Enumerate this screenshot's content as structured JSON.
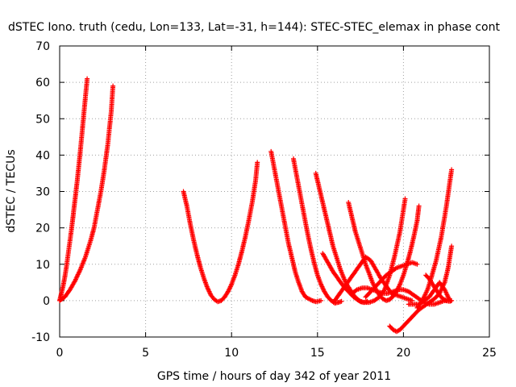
{
  "chart_data": {
    "type": "scatter",
    "title": "dSTEC Iono. truth (cedu, Lon=133, Lat=-31, h=144): STEC-STEC_elemax in phase cont",
    "xlabel": "GPS time / hours of day 342 of year 2011",
    "ylabel": "dSTEC  / TECUs",
    "xlim": [
      0,
      25
    ],
    "ylim": [
      -10,
      70
    ],
    "xticks": [
      0,
      5,
      10,
      15,
      20,
      25
    ],
    "yticks": [
      -10,
      0,
      10,
      20,
      30,
      40,
      50,
      60,
      70
    ],
    "grid": true,
    "marker": "+",
    "color": "#ff0000",
    "series": [
      {
        "x": [
          0.0,
          0.1,
          0.2,
          0.3,
          0.4,
          0.5,
          0.6,
          0.7,
          0.8,
          0.9,
          1.0,
          1.1,
          1.2,
          1.3,
          1.4,
          1.5,
          1.6
        ],
        "y": [
          0,
          2,
          4,
          6.5,
          9.5,
          13,
          16.5,
          20,
          24,
          28,
          32,
          36.5,
          41,
          46,
          51,
          56,
          61
        ]
      },
      {
        "x": [
          0.0,
          0.3,
          0.6,
          0.9,
          1.2,
          1.5,
          1.8,
          2.0,
          2.2,
          2.4,
          2.6,
          2.8,
          3.0,
          3.1
        ],
        "y": [
          0,
          1,
          3,
          5.5,
          8.5,
          12,
          16.5,
          20,
          25,
          30,
          36,
          43,
          52,
          59
        ]
      },
      {
        "x": [
          7.2,
          7.4,
          7.6,
          7.8,
          8.0,
          8.2,
          8.4,
          8.6,
          8.8,
          9.0,
          9.2,
          9.4,
          9.6,
          9.8,
          10.0,
          10.2,
          10.4,
          10.6,
          10.8,
          11.0,
          11.2,
          11.4,
          11.5
        ],
        "y": [
          30,
          26,
          21,
          16.5,
          12.5,
          9,
          6,
          3.5,
          1.5,
          0.3,
          -0.3,
          0,
          1,
          2.5,
          4.5,
          7,
          10,
          13.5,
          17.5,
          22,
          27,
          33,
          38
        ]
      },
      {
        "x": [
          12.3,
          12.5,
          12.7,
          12.9,
          13.1,
          13.3,
          13.5,
          13.7,
          13.9,
          14.1,
          14.3,
          14.5,
          14.7,
          14.9,
          15.2
        ],
        "y": [
          41,
          36,
          31,
          26,
          21,
          16,
          12,
          8,
          5,
          2.5,
          1,
          0.5,
          0,
          -0.3,
          0
        ]
      },
      {
        "x": [
          13.6,
          13.8,
          14.0,
          14.2,
          14.4,
          14.6,
          14.8,
          15.0,
          15.2,
          15.4,
          15.6,
          15.8,
          16.0,
          16.2,
          16.4
        ],
        "y": [
          39,
          34,
          29,
          24,
          19,
          14.5,
          10.5,
          7,
          4.5,
          2.5,
          1,
          0,
          -0.7,
          -0.5,
          -0.2
        ]
      },
      {
        "x": [
          14.9,
          15.1,
          15.3,
          15.5,
          15.7,
          15.9,
          16.1,
          16.3,
          16.5,
          16.7,
          16.9,
          17.1,
          17.3,
          17.5,
          17.7,
          17.9
        ],
        "y": [
          35,
          31,
          27,
          23,
          19,
          15,
          12,
          9,
          6.5,
          4.5,
          3,
          1.5,
          0.5,
          -0.3,
          -0.5,
          -0.2
        ]
      },
      {
        "x": [
          15.3,
          15.6,
          15.9,
          16.2,
          16.5,
          16.8,
          17.1,
          17.4,
          17.7,
          18.0,
          18.3,
          18.6,
          18.9,
          19.2,
          19.5,
          19.8,
          20.1
        ],
        "y": [
          13,
          10.5,
          8,
          6,
          4,
          2.5,
          1,
          0,
          -0.5,
          -0.5,
          0,
          1,
          3,
          7,
          12.5,
          19,
          28
        ]
      },
      {
        "x": [
          16.8,
          17.0,
          17.2,
          17.4,
          17.6,
          17.8,
          18.0,
          18.2,
          18.4,
          18.6,
          18.8,
          19.0,
          19.2,
          19.4,
          19.6,
          19.8,
          20.0,
          20.2,
          20.4,
          20.6,
          20.8,
          20.9
        ],
        "y": [
          27,
          23,
          19,
          16,
          13,
          10,
          7.5,
          5,
          3,
          1.5,
          0.5,
          0,
          0.3,
          1.2,
          2.5,
          4.5,
          7,
          10,
          13.5,
          17.5,
          22,
          26
        ]
      },
      {
        "x": [
          16.0,
          16.3,
          16.6,
          16.9,
          17.2,
          17.5,
          17.8,
          18.1,
          18.4,
          18.7,
          19.0,
          19.3,
          19.6,
          19.9,
          20.2,
          20.5
        ],
        "y": [
          0,
          2,
          4,
          6,
          8,
          10,
          12,
          11,
          8.5,
          6,
          4,
          2,
          1.5,
          1,
          0.5,
          0
        ]
      },
      {
        "x": [
          17.0,
          17.3,
          17.6,
          17.9,
          18.2,
          18.5,
          18.8,
          19.1,
          19.4,
          19.7,
          20.0,
          20.3,
          20.6,
          20.9,
          21.2,
          21.5,
          21.8,
          22.1,
          22.4,
          22.7,
          22.8
        ],
        "y": [
          2,
          3,
          3.5,
          3.5,
          3,
          2.5,
          2,
          2,
          2.5,
          3,
          3,
          2.5,
          1.5,
          0.5,
          -0.5,
          -1,
          -1,
          -0.5,
          0,
          -0.2,
          0
        ]
      },
      {
        "x": [
          17.8,
          18.1,
          18.4,
          18.7,
          19.0,
          19.3,
          19.6,
          19.9,
          20.2,
          20.5,
          20.8
        ],
        "y": [
          1,
          2.5,
          4,
          5.5,
          7,
          8,
          9,
          9.5,
          10,
          10.5,
          10
        ]
      },
      {
        "x": [
          19.2,
          19.4,
          19.6,
          19.8,
          20.0,
          20.3,
          20.6,
          20.9,
          21.2,
          21.5,
          21.8,
          22.1,
          22.4,
          22.6,
          22.8
        ],
        "y": [
          -7,
          -8,
          -8.5,
          -8,
          -7,
          -5.5,
          -4,
          -2.5,
          -1.5,
          -0.5,
          0.5,
          2,
          5,
          9,
          15
        ]
      },
      {
        "x": [
          20.3,
          20.6,
          20.9,
          21.2,
          21.5,
          21.8,
          22.1,
          22.4,
          22.7
        ],
        "y": [
          -1,
          -1,
          -1,
          0,
          1,
          3,
          5,
          3,
          0
        ]
      },
      {
        "x": [
          20.8,
          21.1,
          21.4,
          21.6,
          21.9,
          22.2,
          22.5,
          22.8
        ],
        "y": [
          -2,
          0,
          3,
          6,
          11,
          17.5,
          26,
          36
        ]
      },
      {
        "x": [
          21.3,
          21.5,
          21.7,
          21.9,
          22.1,
          22.3,
          22.5
        ],
        "y": [
          7,
          6,
          4.5,
          3,
          1.5,
          0.5,
          0
        ]
      }
    ]
  }
}
